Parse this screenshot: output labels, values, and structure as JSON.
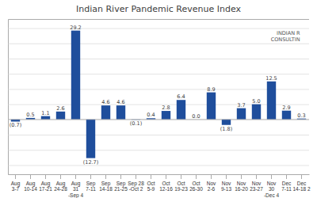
{
  "chart_data": {
    "type": "bar",
    "title": "Indian River Pandemic Revenue Index",
    "categories": [
      "Aug\n3-7",
      "Aug\n10-14",
      "Aug\n17-21",
      "Aug\n24-28",
      "Aug\n31\n-Sep 4",
      "Sep\n7-11",
      "Sep\n14-18",
      "Sep\n21-25",
      "Sep 28\n-Oct 2",
      "Oct\n5-9",
      "Oct\n12-16",
      "Oct\n19-23",
      "Oct\n26-30",
      "Nov\n2-6",
      "Nov\n9-13",
      "Nov\n16-20",
      "Nov\n23-27",
      "Nov\n30\n-Dec 4",
      "Dec\n7-11",
      "Dec\n14-18 2"
    ],
    "values": [
      -0.7,
      0.5,
      1.1,
      2.6,
      29.2,
      -12.7,
      4.6,
      4.6,
      -0.1,
      0.4,
      2.8,
      6.4,
      0.0,
      8.9,
      -1.8,
      3.7,
      5.0,
      12.5,
      2.9,
      0.3
    ],
    "value_labels": [
      "(0.7)",
      "0.5",
      "1.1",
      "2.6",
      "29.2",
      "(12.7)",
      "4.6",
      "4.6",
      "(0.1)",
      "0.4",
      "2.8",
      "6.4",
      "0.0",
      "8.9",
      "(1.8)",
      "3.7",
      "5.0",
      "12.5",
      "2.9",
      "0.3"
    ],
    "color": "#1f4e9c",
    "ylim": [
      -18,
      33
    ],
    "yticks": [
      -15,
      -10,
      -5,
      0,
      5,
      10,
      15,
      20,
      25,
      30
    ],
    "grid": true,
    "tick_labels": "x",
    "data_labels": true,
    "annotations": [
      "INDIAN R\nCONSULTIN"
    ]
  }
}
